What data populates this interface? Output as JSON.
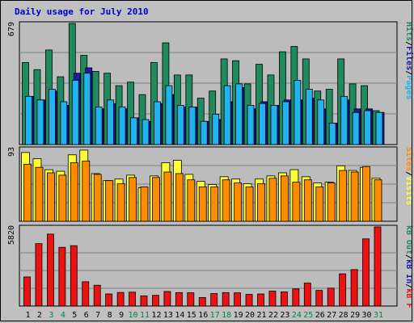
{
  "title": "Daily usage for July 2010",
  "colors": {
    "background": "#c0c0c0",
    "plot_bg": "#bcbcbc",
    "hits": "#1e8a5e",
    "files": "#1a1aa8",
    "pages": "#22b2ee",
    "visits": "#ffff33",
    "sites": "#ff8c00",
    "kbin": "#ee1111",
    "title": "#0000cc",
    "weekend_label": "#008844",
    "weekday_label": "#000000"
  },
  "legend_separator": "/",
  "x_labels": [
    "1",
    "2",
    "3",
    "4",
    "5",
    "6",
    "7",
    "8",
    "9",
    "10",
    "11",
    "12",
    "13",
    "14",
    "15",
    "16",
    "17",
    "18",
    "19",
    "20",
    "21",
    "22",
    "23",
    "24",
    "25",
    "26",
    "27",
    "28",
    "29",
    "30",
    "31"
  ],
  "weekend_days": [
    "3",
    "4",
    "10",
    "11",
    "17",
    "18",
    "24",
    "25",
    "31"
  ],
  "chart_data": [
    {
      "type": "bar",
      "panel": "top",
      "ymax_label": "679",
      "ylim": [
        0,
        679
      ],
      "legend": [
        "Pages",
        "Files",
        "Hits"
      ],
      "legend_colors": [
        "#22b2ee",
        "#1a1aa8",
        "#1e8a5e"
      ],
      "series": [
        {
          "name": "Hits",
          "values": [
            460,
            420,
            530,
            380,
            679,
            500,
            410,
            400,
            330,
            350,
            280,
            460,
            570,
            390,
            390,
            260,
            300,
            480,
            470,
            340,
            450,
            390,
            520,
            550,
            480,
            300,
            310,
            480,
            340,
            330,
            190
          ]
        },
        {
          "name": "Files",
          "values": [
            270,
            250,
            300,
            220,
            400,
            430,
            200,
            230,
            200,
            150,
            130,
            230,
            280,
            210,
            210,
            130,
            140,
            240,
            320,
            200,
            240,
            220,
            250,
            250,
            260,
            200,
            120,
            250,
            200,
            200,
            180
          ]
        },
        {
          "name": "Pages",
          "values": [
            270,
            250,
            310,
            240,
            360,
            400,
            210,
            250,
            210,
            150,
            140,
            240,
            330,
            220,
            210,
            130,
            170,
            330,
            340,
            220,
            230,
            220,
            240,
            360,
            310,
            250,
            120,
            270,
            180,
            190,
            180
          ]
        }
      ]
    },
    {
      "type": "bar",
      "panel": "middle",
      "ymax_label": "93",
      "ylim": [
        0,
        93
      ],
      "legend": [
        "Visits",
        "Sites"
      ],
      "legend_colors": [
        "#ffff33",
        "#ff8c00"
      ],
      "series": [
        {
          "name": "Visits",
          "values": [
            88,
            80,
            66,
            64,
            85,
            91,
            61,
            52,
            54,
            59,
            43,
            58,
            75,
            78,
            60,
            51,
            47,
            57,
            54,
            48,
            54,
            58,
            62,
            66,
            57,
            49,
            50,
            71,
            65,
            69,
            55
          ]
        },
        {
          "name": "Sites",
          "values": [
            73,
            69,
            62,
            59,
            75,
            77,
            60,
            52,
            48,
            56,
            44,
            56,
            63,
            61,
            53,
            44,
            44,
            53,
            49,
            44,
            48,
            55,
            58,
            50,
            53,
            44,
            49,
            65,
            63,
            70,
            53
          ]
        }
      ]
    },
    {
      "type": "bar",
      "panel": "bottom",
      "ymax_label": "5820",
      "ylim": [
        0,
        5820
      ],
      "legend": [
        "kB F",
        "kB In",
        "kB Out"
      ],
      "legend_colors": [
        "#ee1111",
        "#1a1aa8",
        "#1e8a5e"
      ],
      "series": [
        {
          "name": "kB F",
          "values": [
            0,
            0,
            0,
            0,
            0,
            0,
            0,
            0,
            0,
            0,
            0,
            0,
            0,
            0,
            0,
            0,
            0,
            0,
            0,
            0,
            0,
            0,
            0,
            0,
            0,
            0,
            0,
            0,
            0,
            0,
            0
          ]
        },
        {
          "name": "kB In",
          "values": [
            2140,
            4590,
            5290,
            4320,
            4440,
            1790,
            1530,
            890,
            1000,
            1020,
            750,
            790,
            1070,
            990,
            980,
            630,
            920,
            990,
            970,
            860,
            890,
            1100,
            1040,
            1260,
            1690,
            1150,
            1320,
            2370,
            2680,
            4940,
            5820
          ]
        }
      ]
    }
  ]
}
